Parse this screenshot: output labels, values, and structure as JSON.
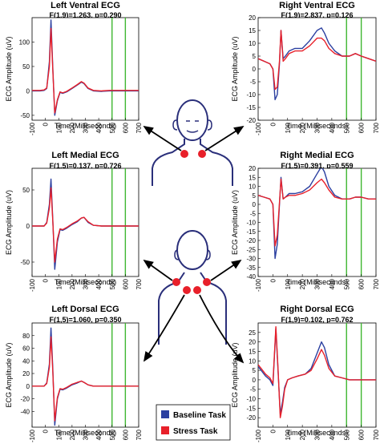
{
  "chart_data": [
    {
      "type": "line",
      "title": "Left Ventral ECG",
      "subtitle": "F(1,9)=1.263, p=0.290",
      "xlabel": "Time (Milliseconds)",
      "ylabel": "ECG Amplitude (uV)",
      "xlim": [
        -100,
        700
      ],
      "ylim": [
        -60,
        150
      ],
      "xticks": [
        -100,
        0,
        100,
        200,
        300,
        400,
        500,
        600,
        700
      ],
      "yticks": [
        -50,
        0,
        50,
        100
      ],
      "vlines": [
        500,
        600
      ],
      "series": [
        {
          "name": "Baseline Task",
          "color": "#2b3fa0",
          "x": [
            -100,
            -40,
            -10,
            10,
            30,
            42,
            55,
            70,
            90,
            110,
            130,
            160,
            200,
            240,
            270,
            290,
            320,
            360,
            420,
            480,
            550,
            620,
            700
          ],
          "y": [
            0,
            0,
            1,
            5,
            60,
            145,
            50,
            -50,
            -20,
            -3,
            -5,
            -2,
            5,
            12,
            18,
            15,
            5,
            0,
            -1,
            0,
            0,
            0,
            0
          ]
        },
        {
          "name": "Stress Task",
          "color": "#e8202a",
          "x": [
            -100,
            -40,
            -10,
            10,
            30,
            42,
            55,
            70,
            90,
            110,
            130,
            160,
            200,
            240,
            270,
            290,
            320,
            360,
            420,
            480,
            550,
            620,
            700
          ],
          "y": [
            1,
            1,
            2,
            6,
            50,
            128,
            45,
            -45,
            -18,
            -2,
            -4,
            -1,
            6,
            13,
            19,
            16,
            6,
            1,
            0,
            1,
            1,
            1,
            1
          ]
        }
      ]
    },
    {
      "type": "line",
      "title": "Right Ventral ECG",
      "subtitle": "F(1,9)=2.837, p=0.126",
      "xlabel": "Time (Milliseconds)",
      "ylabel": "ECG Amplitude (uV)",
      "xlim": [
        -100,
        700
      ],
      "ylim": [
        -20,
        20
      ],
      "xticks": [
        -100,
        0,
        100,
        200,
        300,
        400,
        500,
        600,
        700
      ],
      "yticks": [
        -20,
        -15,
        -10,
        -5,
        0,
        5,
        10,
        15,
        20
      ],
      "vlines": [
        500,
        600
      ],
      "series": [
        {
          "name": "Baseline Task",
          "color": "#2b3fa0",
          "x": [
            -100,
            -60,
            -20,
            0,
            15,
            30,
            45,
            55,
            70,
            85,
            110,
            150,
            200,
            250,
            300,
            330,
            350,
            380,
            420,
            470,
            520,
            560,
            600,
            650,
            700
          ],
          "y": [
            4,
            3,
            2,
            0,
            -12,
            -10,
            2,
            15,
            4,
            5,
            7,
            8,
            8,
            11,
            15,
            16,
            14,
            10,
            7,
            5,
            5,
            6,
            5,
            4,
            3
          ]
        },
        {
          "name": "Stress Task",
          "color": "#e8202a",
          "x": [
            -100,
            -60,
            -20,
            0,
            15,
            30,
            45,
            55,
            70,
            85,
            110,
            150,
            200,
            250,
            300,
            330,
            350,
            380,
            420,
            470,
            520,
            560,
            600,
            650,
            700
          ],
          "y": [
            4,
            3,
            2,
            0,
            -8,
            -7,
            3,
            15,
            3,
            4,
            6,
            7,
            7,
            9,
            12,
            12,
            11,
            8,
            6,
            5,
            5,
            6,
            5,
            4,
            3
          ]
        }
      ]
    },
    {
      "type": "line",
      "title": "Left Medial ECG",
      "subtitle": "F(1,5)=0.137, p=0.726",
      "xlabel": "Time (Milliseconds)",
      "ylabel": "ECG Amplitude (uV)",
      "xlim": [
        -100,
        700
      ],
      "ylim": [
        -70,
        80
      ],
      "xticks": [
        -100,
        0,
        100,
        200,
        300,
        400,
        500,
        600,
        700
      ],
      "yticks": [
        -50,
        0,
        50
      ],
      "vlines": [
        500,
        600
      ],
      "series": [
        {
          "name": "Baseline Task",
          "color": "#2b3fa0",
          "x": [
            -100,
            -40,
            -10,
            10,
            30,
            42,
            55,
            70,
            90,
            110,
            130,
            160,
            200,
            240,
            270,
            290,
            320,
            360,
            420,
            480,
            550,
            620,
            700
          ],
          "y": [
            0,
            0,
            0,
            5,
            30,
            65,
            10,
            -60,
            -22,
            -5,
            -6,
            -3,
            2,
            6,
            11,
            12,
            5,
            1,
            0,
            0,
            0,
            0,
            0
          ]
        },
        {
          "name": "Stress Task",
          "color": "#e8202a",
          "x": [
            -100,
            -40,
            -10,
            10,
            30,
            42,
            55,
            70,
            90,
            110,
            130,
            160,
            200,
            240,
            270,
            290,
            320,
            360,
            420,
            480,
            550,
            620,
            700
          ],
          "y": [
            0,
            0,
            0,
            4,
            25,
            53,
            8,
            -50,
            -18,
            -4,
            -5,
            -2,
            3,
            7,
            11,
            12,
            6,
            1,
            0,
            0,
            0,
            0,
            0
          ]
        }
      ]
    },
    {
      "type": "line",
      "title": "Right Medial ECG",
      "subtitle": "F(1,5)=0.391, p=0.559",
      "xlabel": "Time (Milliseconds)",
      "ylabel": "ECG Amplitude (uV)",
      "xlim": [
        -100,
        700
      ],
      "ylim": [
        -40,
        20
      ],
      "xticks": [
        -100,
        0,
        100,
        200,
        300,
        400,
        500,
        600,
        700
      ],
      "yticks": [
        -40,
        -35,
        -30,
        -25,
        -20,
        -15,
        -10,
        -5,
        0,
        5,
        10,
        15,
        20
      ],
      "vlines": [
        500,
        600
      ],
      "series": [
        {
          "name": "Baseline Task",
          "color": "#2b3fa0",
          "x": [
            -100,
            -60,
            -20,
            0,
            15,
            30,
            45,
            55,
            70,
            85,
            110,
            150,
            200,
            250,
            300,
            330,
            350,
            380,
            420,
            470,
            520,
            560,
            600,
            650,
            700
          ],
          "y": [
            5,
            4,
            3,
            0,
            -30,
            -22,
            0,
            15,
            3,
            4,
            6,
            6,
            7,
            10,
            17,
            21,
            18,
            10,
            5,
            3,
            3,
            4,
            4,
            3,
            3
          ]
        },
        {
          "name": "Stress Task",
          "color": "#e8202a",
          "x": [
            -100,
            -60,
            -20,
            0,
            15,
            30,
            45,
            55,
            70,
            85,
            110,
            150,
            200,
            250,
            300,
            330,
            350,
            380,
            420,
            470,
            520,
            560,
            600,
            650,
            700
          ],
          "y": [
            5,
            4,
            3,
            0,
            -23,
            -17,
            1,
            14,
            3,
            4,
            5,
            5,
            6,
            8,
            12,
            14,
            12,
            8,
            4,
            3,
            3,
            4,
            4,
            3,
            3
          ]
        }
      ]
    },
    {
      "type": "line",
      "title": "Left Dorsal ECG",
      "subtitle": "F(1,5)=1.060, p=0.350",
      "xlabel": "Time (Milliseconds)",
      "ylabel": "ECG Amplitude (uV)",
      "xlim": [
        -100,
        700
      ],
      "ylim": [
        -65,
        100
      ],
      "xticks": [
        -100,
        0,
        100,
        200,
        300,
        400,
        500,
        600,
        700
      ],
      "yticks": [
        -40,
        -20,
        0,
        20,
        40,
        60,
        80
      ],
      "vlines": [
        500,
        600
      ],
      "series": [
        {
          "name": "Baseline Task",
          "color": "#2b3fa0",
          "x": [
            -100,
            -40,
            -10,
            10,
            30,
            42,
            55,
            70,
            90,
            110,
            130,
            160,
            200,
            240,
            270,
            290,
            320,
            360,
            420,
            480,
            550,
            620,
            700
          ],
          "y": [
            0,
            0,
            0,
            5,
            35,
            92,
            30,
            -62,
            -20,
            -5,
            -6,
            -3,
            2,
            5,
            8,
            6,
            2,
            0,
            0,
            0,
            0,
            0,
            0
          ]
        },
        {
          "name": "Stress Task",
          "color": "#e8202a",
          "x": [
            -100,
            -40,
            -10,
            10,
            30,
            42,
            55,
            70,
            90,
            110,
            130,
            160,
            200,
            240,
            270,
            290,
            320,
            360,
            420,
            480,
            550,
            620,
            700
          ],
          "y": [
            0,
            0,
            0,
            4,
            30,
            78,
            25,
            -55,
            -18,
            -4,
            -5,
            -2,
            3,
            6,
            8,
            6,
            2,
            0,
            0,
            0,
            0,
            0,
            0
          ]
        }
      ]
    },
    {
      "type": "line",
      "title": "Right Dorsal ECG",
      "subtitle": "F(1,9)=0.102, p=0.762",
      "xlabel": "Time (Milliseconds)",
      "ylabel": "ECG Amplitude (uV)",
      "xlim": [
        -100,
        700
      ],
      "ylim": [
        -25,
        30
      ],
      "xticks": [
        -100,
        0,
        100,
        200,
        300,
        400,
        500,
        600,
        700
      ],
      "yticks": [
        -20,
        -15,
        -10,
        -5,
        0,
        5,
        10,
        15,
        20,
        25
      ],
      "vlines": [
        500,
        600
      ],
      "series": [
        {
          "name": "Baseline Task",
          "color": "#2b3fa0",
          "x": [
            -100,
            -80,
            -50,
            -20,
            0,
            20,
            35,
            50,
            65,
            80,
            100,
            130,
            170,
            220,
            260,
            300,
            330,
            350,
            380,
            420,
            470,
            520,
            600,
            700
          ],
          "y": [
            7,
            5,
            2,
            0,
            -3,
            27,
            5,
            -18,
            -12,
            -4,
            0,
            1,
            2,
            3,
            6,
            14,
            20,
            17,
            8,
            2,
            1,
            0,
            0,
            0
          ]
        },
        {
          "name": "Stress Task",
          "color": "#e8202a",
          "x": [
            -100,
            -80,
            -50,
            -20,
            0,
            20,
            35,
            50,
            65,
            80,
            100,
            130,
            170,
            220,
            260,
            300,
            330,
            350,
            380,
            420,
            470,
            520,
            600,
            700
          ],
          "y": [
            8,
            6,
            3,
            1,
            -2,
            28,
            6,
            -20,
            -14,
            -5,
            0,
            1,
            2,
            3,
            5,
            11,
            16,
            13,
            6,
            2,
            1,
            0,
            0,
            0
          ]
        }
      ]
    }
  ],
  "legend": {
    "items": [
      {
        "label": "Baseline Task",
        "color": "#2b3fa0"
      },
      {
        "label": "Stress Task",
        "color": "#e8202a"
      }
    ]
  },
  "colors": {
    "vline": "#3fb630",
    "electrode": "#e8202a",
    "body_outline": "#2a2f7a",
    "arrow": "#000000"
  }
}
